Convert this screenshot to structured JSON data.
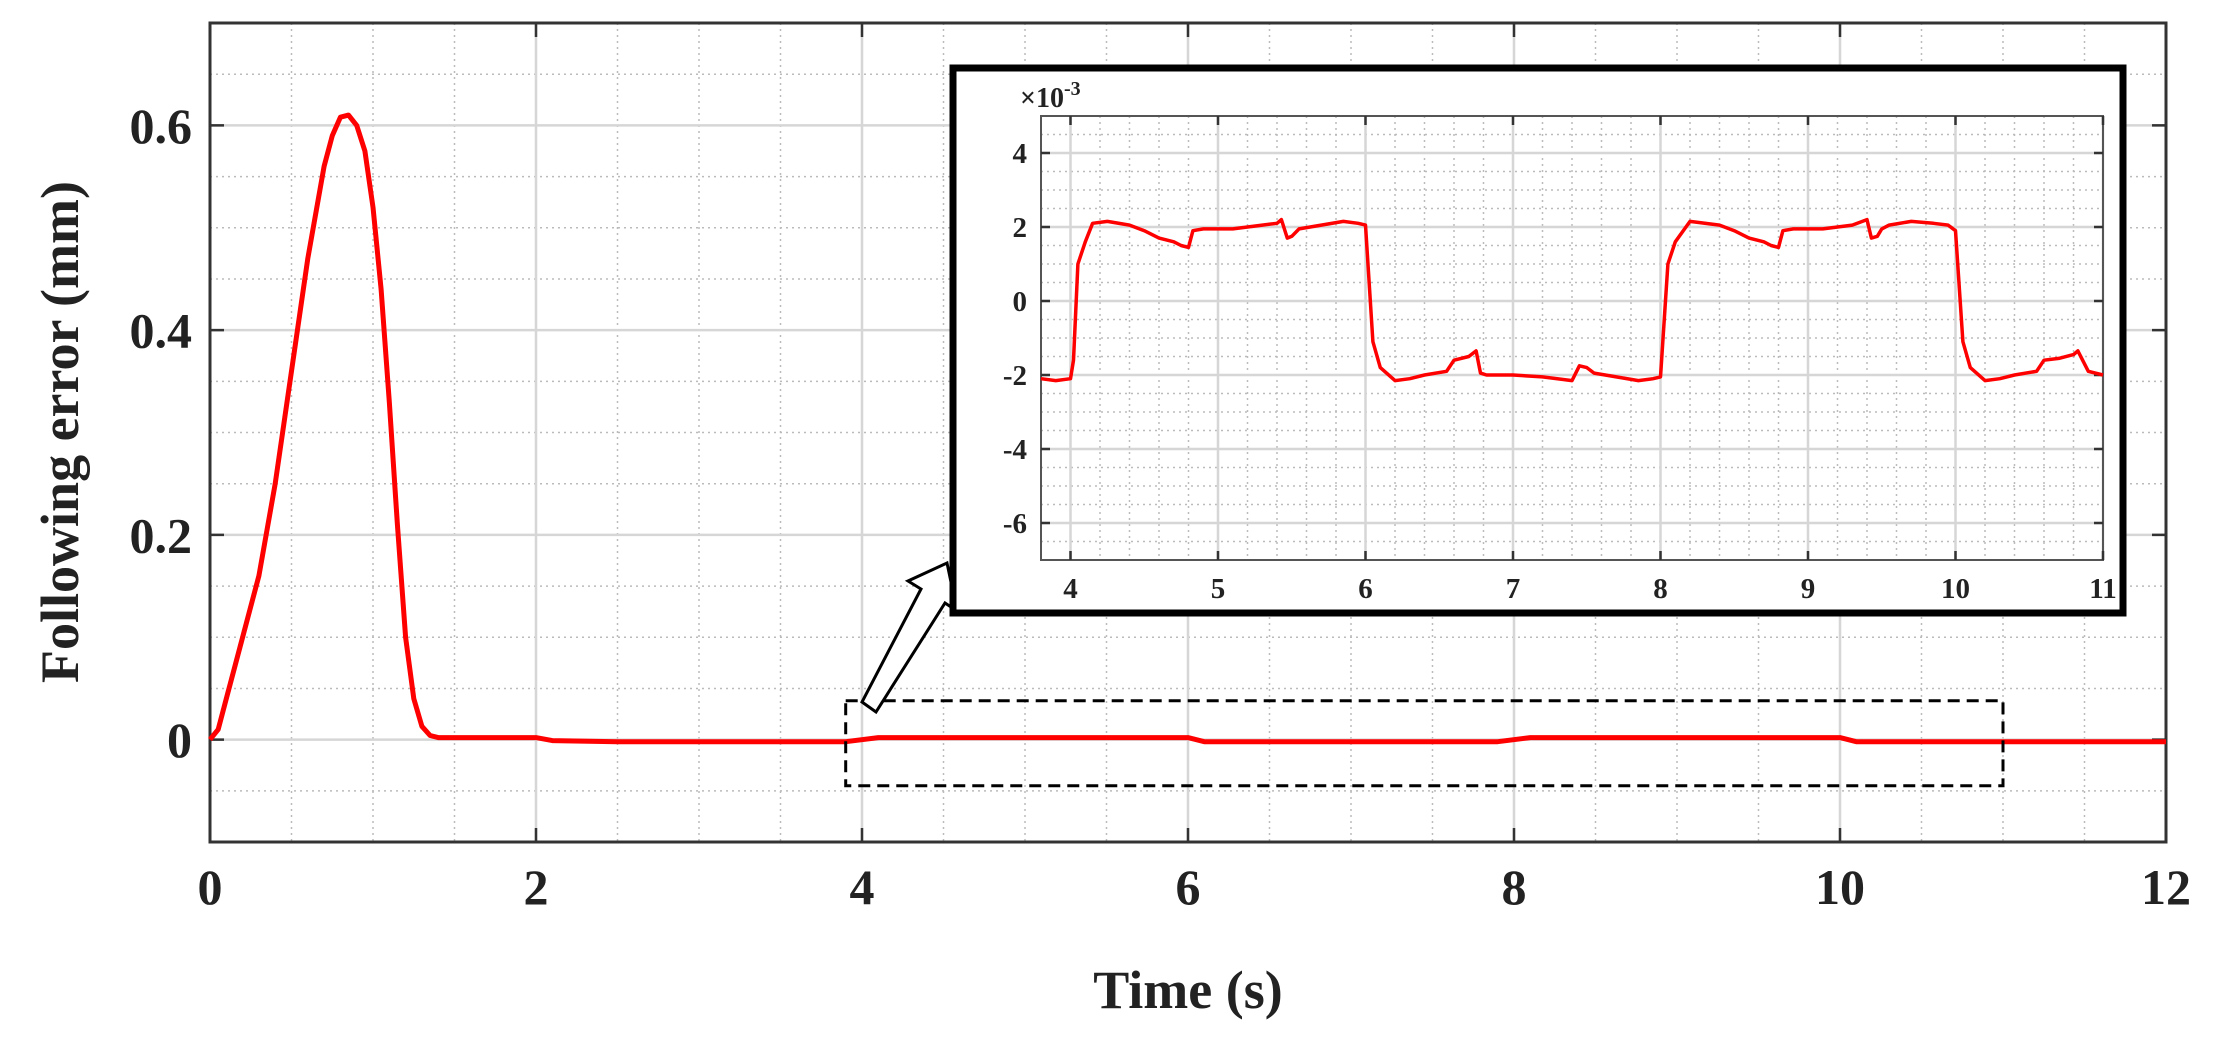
{
  "chart_data": [
    {
      "type": "line",
      "xlabel": "Time (s)",
      "ylabel": "Following error (mm)",
      "xlim": [
        0,
        12
      ],
      "ylim": [
        -0.1,
        0.7
      ],
      "xticks": [
        0,
        2,
        4,
        6,
        8,
        10,
        12
      ],
      "xtick_labels": [
        "0",
        "2",
        "4",
        "6",
        "8",
        "10",
        "12"
      ],
      "yticks": [
        0,
        0.2,
        0.4,
        0.6
      ],
      "ytick_labels": [
        "0",
        "0.2",
        "0.4",
        "0.6"
      ],
      "grid": true,
      "legend": "none",
      "zoom_box": {
        "x": [
          3.9,
          11.0
        ],
        "y": [
          -0.045,
          0.038
        ]
      },
      "series": [
        {
          "color": "#ff0000",
          "x": [
            0,
            0.05,
            0.1,
            0.2,
            0.3,
            0.4,
            0.5,
            0.6,
            0.7,
            0.75,
            0.8,
            0.85,
            0.9,
            0.95,
            1.0,
            1.05,
            1.1,
            1.15,
            1.2,
            1.25,
            1.3,
            1.35,
            1.4,
            1.5,
            1.8,
            2.0,
            2.1,
            2.5,
            3.0,
            3.9,
            4.1,
            5.0,
            6.0,
            6.1,
            7.0,
            7.9,
            8.1,
            9.0,
            10.0,
            10.1,
            11.0,
            12.0
          ],
          "y": [
            0,
            0.01,
            0.04,
            0.1,
            0.16,
            0.25,
            0.36,
            0.47,
            0.56,
            0.59,
            0.608,
            0.61,
            0.6,
            0.575,
            0.52,
            0.44,
            0.33,
            0.21,
            0.1,
            0.04,
            0.013,
            0.004,
            0.002,
            0.002,
            0.002,
            0.002,
            -0.001,
            -0.002,
            -0.002,
            -0.002,
            0.002,
            0.002,
            0.002,
            -0.002,
            -0.002,
            -0.002,
            0.002,
            0.002,
            0.002,
            -0.002,
            -0.002,
            -0.002
          ]
        }
      ]
    },
    {
      "type": "line",
      "xlabel": "",
      "ylabel": "",
      "scale_label_base": "×10",
      "scale_label_exp": "-3",
      "xlim": [
        3.8,
        11
      ],
      "ylim": [
        -7,
        5
      ],
      "xticks": [
        4,
        5,
        6,
        7,
        8,
        9,
        10,
        11
      ],
      "xtick_labels": [
        "4",
        "5",
        "6",
        "7",
        "8",
        "9",
        "10",
        "11"
      ],
      "yticks": [
        -6,
        -4,
        -2,
        0,
        2,
        4
      ],
      "ytick_labels": [
        "-6",
        "-4",
        "-2",
        "0",
        "2",
        "4"
      ],
      "grid": true,
      "legend": "none",
      "series": [
        {
          "color": "#ff0000",
          "x": [
            3.8,
            3.9,
            4.0,
            4.02,
            4.05,
            4.1,
            4.15,
            4.25,
            4.4,
            4.5,
            4.6,
            4.7,
            4.75,
            4.8,
            4.83,
            4.9,
            5.1,
            5.3,
            5.4,
            5.43,
            5.47,
            5.5,
            5.55,
            5.7,
            5.85,
            5.95,
            6.0,
            6.05,
            6.1,
            6.2,
            6.3,
            6.4,
            6.55,
            6.6,
            6.7,
            6.75,
            6.78,
            6.82,
            7.0,
            7.2,
            7.4,
            7.45,
            7.5,
            7.55,
            7.7,
            7.85,
            7.95,
            8.0,
            8.05,
            8.1,
            8.2,
            8.4,
            8.5,
            8.6,
            8.7,
            8.75,
            8.8,
            8.83,
            8.9,
            9.1,
            9.3,
            9.4,
            9.43,
            9.47,
            9.5,
            9.55,
            9.7,
            9.85,
            9.95,
            10.0,
            10.05,
            10.1,
            10.2,
            10.3,
            10.4,
            10.55,
            10.6,
            10.7,
            10.8,
            10.83,
            10.9,
            11.0
          ],
          "y": [
            -2.1,
            -2.15,
            -2.1,
            -1.6,
            1.0,
            1.6,
            2.1,
            2.15,
            2.05,
            1.9,
            1.7,
            1.6,
            1.5,
            1.45,
            1.9,
            1.95,
            1.95,
            2.05,
            2.1,
            2.2,
            1.7,
            1.75,
            1.95,
            2.05,
            2.15,
            2.1,
            2.05,
            -1.1,
            -1.8,
            -2.15,
            -2.1,
            -2.0,
            -1.9,
            -1.6,
            -1.5,
            -1.35,
            -1.95,
            -2.0,
            -2.0,
            -2.05,
            -2.15,
            -1.75,
            -1.8,
            -1.95,
            -2.05,
            -2.15,
            -2.1,
            -2.05,
            1.0,
            1.6,
            2.15,
            2.05,
            1.9,
            1.7,
            1.6,
            1.5,
            1.45,
            1.9,
            1.95,
            1.95,
            2.05,
            2.2,
            1.7,
            1.75,
            1.95,
            2.05,
            2.15,
            2.1,
            2.05,
            1.9,
            -1.1,
            -1.8,
            -2.15,
            -2.1,
            -2.0,
            -1.9,
            -1.6,
            -1.55,
            -1.45,
            -1.35,
            -1.9,
            -2.0
          ]
        }
      ]
    }
  ]
}
